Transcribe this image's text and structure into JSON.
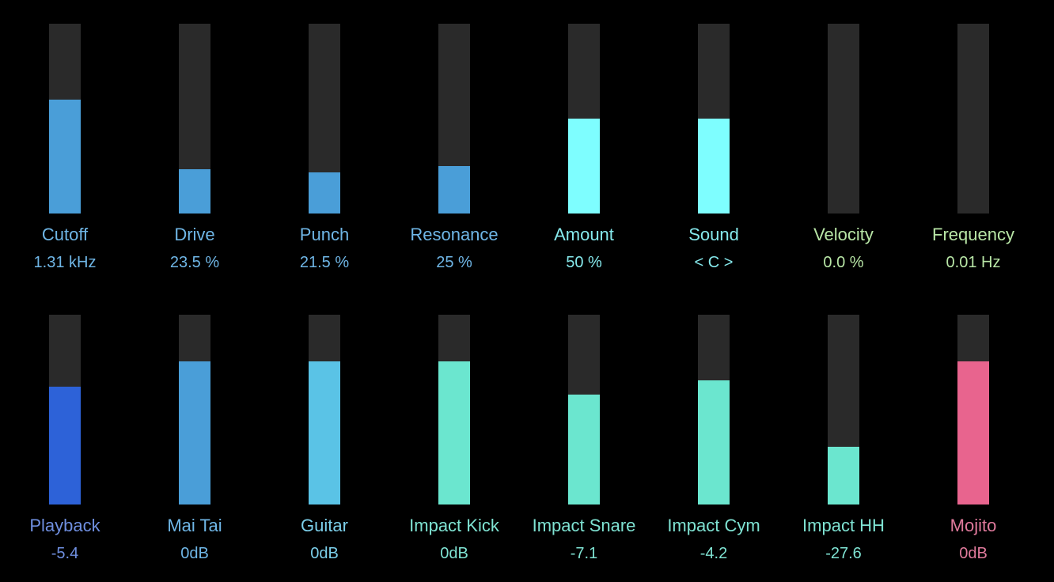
{
  "colors": {
    "background": "#000000",
    "track": "#2a2a2a"
  },
  "top_row": [
    {
      "id": "cutoff",
      "label": "Cutoff",
      "value": "1.31 kHz",
      "level": 0.6,
      "bar_color": "#4a9ed8",
      "text_color": "#6fb6e6"
    },
    {
      "id": "drive",
      "label": "Drive",
      "value": "23.5 %",
      "level": 0.235,
      "bar_color": "#4a9ed8",
      "text_color": "#6fb6e6"
    },
    {
      "id": "punch",
      "label": "Punch",
      "value": "21.5 %",
      "level": 0.215,
      "bar_color": "#4a9ed8",
      "text_color": "#6fb6e6"
    },
    {
      "id": "resonance",
      "label": "Resonance",
      "value": "25 %",
      "level": 0.25,
      "bar_color": "#4a9ed8",
      "text_color": "#6fb6e6"
    },
    {
      "id": "amount",
      "label": "Amount",
      "value": "50 %",
      "level": 0.5,
      "bar_color": "#7efeff",
      "text_color": "#86e9ec"
    },
    {
      "id": "sound",
      "label": "Sound",
      "value": "< C >",
      "level": 0.5,
      "bar_color": "#7efeff",
      "text_color": "#86e9ec"
    },
    {
      "id": "velocity",
      "label": "Velocity",
      "value": "0.0 %",
      "level": 0.0,
      "bar_color": "#b8e6a6",
      "text_color": "#b8e6a6"
    },
    {
      "id": "frequency",
      "label": "Frequency",
      "value": "0.01 Hz",
      "level": 0.0,
      "bar_color": "#b8e6a6",
      "text_color": "#b8e6a6"
    }
  ],
  "bottom_row": [
    {
      "id": "playback",
      "label": "Playback",
      "value": "-5.4",
      "level": 0.62,
      "bar_color": "#2d62d8",
      "text_color": "#6f8fe0"
    },
    {
      "id": "mai-tai",
      "label": "Mai Tai",
      "value": "0dB",
      "level": 0.755,
      "bar_color": "#4a9ed8",
      "text_color": "#6fb6e6"
    },
    {
      "id": "guitar",
      "label": "Guitar",
      "value": "0dB",
      "level": 0.755,
      "bar_color": "#5ac3e6",
      "text_color": "#7ccfea"
    },
    {
      "id": "impact-kick",
      "label": "Impact Kick",
      "value": "0dB",
      "level": 0.755,
      "bar_color": "#6be6cf",
      "text_color": "#7fe3d3"
    },
    {
      "id": "impact-snare",
      "label": "Impact Snare",
      "value": "-7.1",
      "level": 0.58,
      "bar_color": "#6be6cf",
      "text_color": "#7fe3d3"
    },
    {
      "id": "impact-cym",
      "label": "Impact Cym",
      "value": "-4.2",
      "level": 0.655,
      "bar_color": "#6be6cf",
      "text_color": "#7fe3d3"
    },
    {
      "id": "impact-hh",
      "label": "Impact HH",
      "value": "-27.6",
      "level": 0.305,
      "bar_color": "#6be6cf",
      "text_color": "#7fe3d3"
    },
    {
      "id": "mojito",
      "label": "Mojito",
      "value": "0dB",
      "level": 0.755,
      "bar_color": "#e8648e",
      "text_color": "#e07a9c"
    }
  ]
}
